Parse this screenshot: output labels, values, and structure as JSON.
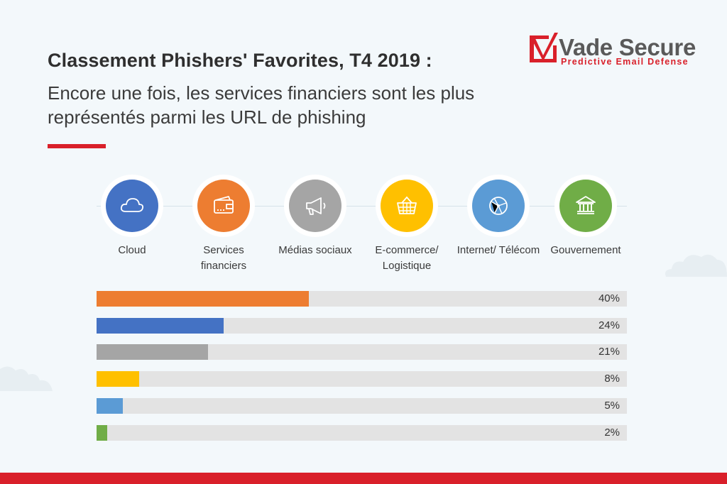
{
  "header": {
    "title": "Classement Phishers' Favorites, T4 2019 :",
    "subtitle": "Encore une fois, les services financiers sont les plus représentés parmi les URL de phishing"
  },
  "logo": {
    "brand": "Vade Secure",
    "tagline": "Predictive Email Defense",
    "brand_color": "#d9202a"
  },
  "categories": [
    {
      "label": "Cloud",
      "icon": "cloud-icon",
      "color": "#4472c4"
    },
    {
      "label": "Services financiers",
      "icon": "wallet-icon",
      "color": "#ed7d31"
    },
    {
      "label": "Médias sociaux",
      "icon": "megaphone-icon",
      "color": "#a5a5a5"
    },
    {
      "label": "E-commerce/ Logistique",
      "icon": "basket-icon",
      "color": "#ffc000"
    },
    {
      "label": "Internet/ Télécom",
      "icon": "globe-icon",
      "color": "#5b9bd5"
    },
    {
      "label": "Gouvernement",
      "icon": "government-building-icon",
      "color": "#70ad47"
    }
  ],
  "chart_data": {
    "type": "bar",
    "orientation": "horizontal",
    "categories": [
      "Services financiers",
      "Cloud",
      "Médias sociaux",
      "E-commerce/ Logistique",
      "Internet/ Télécom",
      "Gouvernement"
    ],
    "values": [
      40,
      24,
      21,
      8,
      5,
      2
    ],
    "value_labels": [
      "40%",
      "24%",
      "21%",
      "8%",
      "5%",
      "2%"
    ],
    "colors": [
      "#ed7d31",
      "#4472c4",
      "#a5a5a5",
      "#ffc000",
      "#5b9bd5",
      "#70ad47"
    ],
    "xlim": [
      0,
      100
    ],
    "grid": false,
    "legend": "icons-top"
  }
}
